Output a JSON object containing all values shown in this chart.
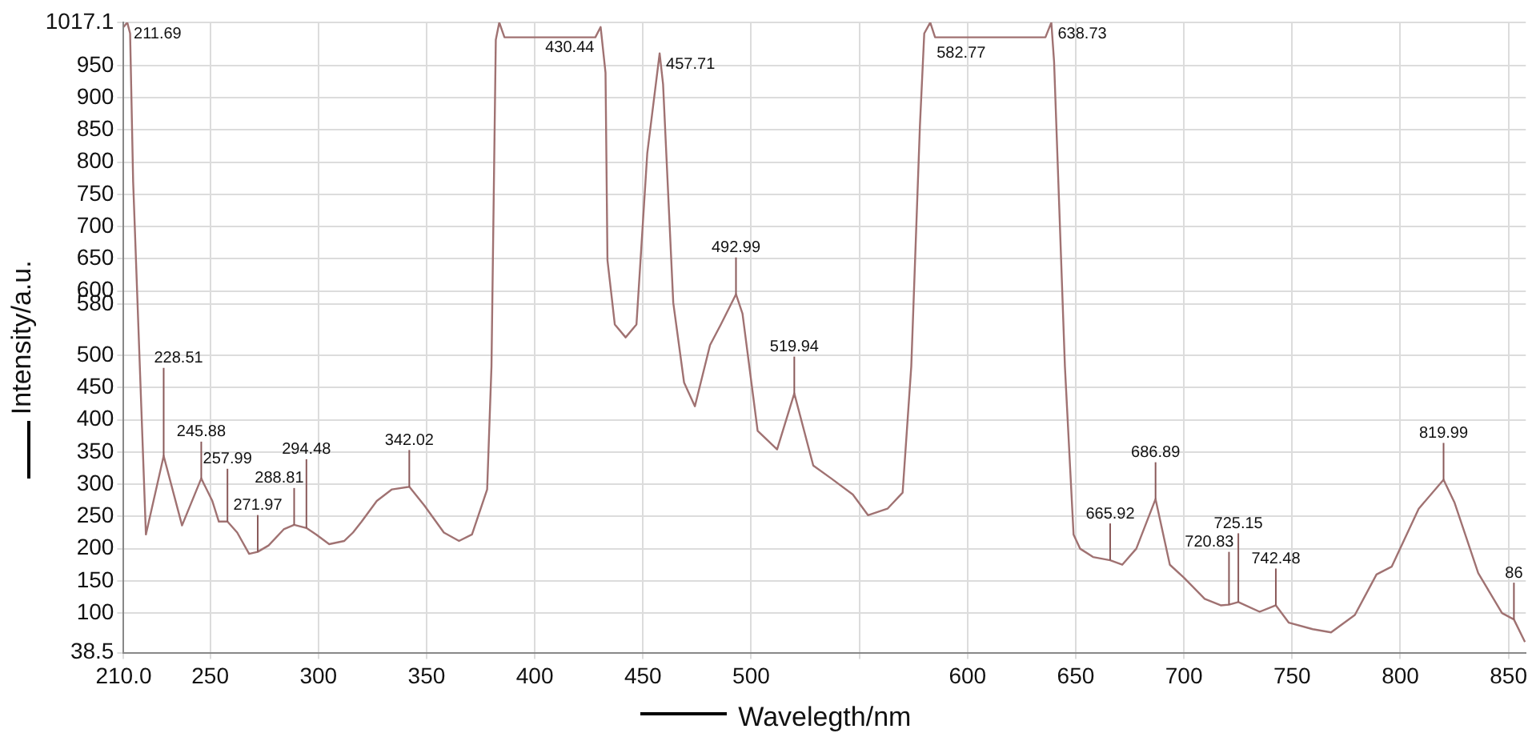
{
  "chart_data": {
    "type": "line",
    "xlabel": "Wavelegth/nm",
    "ylabel": "Intensity/a.u.",
    "x": [
      210,
      211.69,
      213,
      214.4,
      220.3,
      228.51,
      237,
      245.88,
      251,
      254,
      257.99,
      262.5,
      268,
      271.97,
      277,
      284,
      288.81,
      294.48,
      299,
      305,
      312,
      316,
      320,
      327,
      334,
      342.02,
      349,
      358,
      365,
      371,
      378,
      380,
      382,
      383.6,
      386,
      428,
      430.44,
      432.7,
      433.6,
      437,
      442,
      447,
      452,
      457.71,
      459.3,
      464,
      469,
      474,
      481,
      486,
      492.99,
      496,
      503,
      512,
      519.94,
      528.7,
      537,
      547,
      554,
      563,
      570,
      574,
      578,
      580,
      582.77,
      585,
      636,
      638.73,
      640,
      645,
      649,
      652,
      658,
      665.92,
      671.5,
      678,
      686.89,
      693.5,
      700,
      709.6,
      717,
      720.83,
      725.15,
      735,
      742.48,
      748.5,
      759.5,
      768,
      779,
      789,
      796,
      808.5,
      819.99,
      825,
      836,
      847,
      852.5,
      857.6
    ],
    "series": [
      {
        "color": "#a07272",
        "values": [
          1010,
          1017,
          1000,
          770,
          222,
          344,
          236,
          309,
          274,
          242,
          242,
          225,
          192,
          195,
          205,
          230,
          237,
          232,
          222,
          207,
          212,
          225,
          242,
          274,
          292,
          296,
          267,
          225,
          212,
          222,
          292,
          483,
          990,
          1017,
          994,
          994,
          1010,
          939,
          648,
          548,
          528,
          548,
          814,
          969,
          921,
          582,
          458,
          421,
          516,
          548,
          595,
          565,
          383,
          354,
          441,
          329,
          309,
          284,
          252,
          262,
          287,
          483,
          857,
          1000,
          1017,
          994,
          994,
          1017,
          956,
          483,
          222,
          200,
          187,
          182,
          175,
          200,
          277,
          175,
          155,
          122,
          112,
          113,
          117,
          102,
          112,
          85,
          75,
          70,
          97,
          160,
          172,
          262,
          307,
          272,
          162,
          100,
          90,
          55
        ]
      }
    ],
    "xlim": [
      210,
      858
    ],
    "xticks": [
      {
        "value": 210,
        "label": "210.0"
      },
      250,
      300,
      350,
      400,
      450,
      500,
      {
        "value": 550,
        "label": null
      },
      600,
      650,
      700,
      750,
      800,
      850
    ],
    "ylim": [
      38.5,
      1017.1
    ],
    "yticks": [
      38.5,
      100,
      150,
      200,
      250,
      300,
      350,
      400,
      450,
      500,
      580,
      600,
      650,
      700,
      750,
      800,
      850,
      900,
      950,
      1017.1
    ],
    "grid": true,
    "marker": "none",
    "line_style": "solid",
    "annotations": [
      {
        "text": "211.69",
        "x": 211.69,
        "y": 1017
      },
      {
        "text": "228.51",
        "x": 228.51,
        "y": 344
      },
      {
        "text": "245.88",
        "x": 245.88,
        "y": 309
      },
      {
        "text": "257.99",
        "x": 257.99,
        "y": 242
      },
      {
        "text": "271.97",
        "x": 271.97,
        "y": 195
      },
      {
        "text": "288.81",
        "x": 288.81,
        "y": 237
      },
      {
        "text": "294.48",
        "x": 294.48,
        "y": 232
      },
      {
        "text": "342.02",
        "x": 342.02,
        "y": 296
      },
      {
        "text": "430.44",
        "x": 430.44,
        "y": 1010
      },
      {
        "text": "457.71",
        "x": 457.71,
        "y": 969
      },
      {
        "text": "492.99",
        "x": 492.99,
        "y": 595
      },
      {
        "text": "519.94",
        "x": 519.94,
        "y": 441
      },
      {
        "text": "582.77",
        "x": 582.77,
        "y": 1017
      },
      {
        "text": "638.73",
        "x": 638.73,
        "y": 1017
      },
      {
        "text": "665.92",
        "x": 665.92,
        "y": 182
      },
      {
        "text": "686.89",
        "x": 686.89,
        "y": 277
      },
      {
        "text": "720.83",
        "x": 720.83,
        "y": 113
      },
      {
        "text": "725.15",
        "x": 725.15,
        "y": 117
      },
      {
        "text": "742.48",
        "x": 742.48,
        "y": 112
      },
      {
        "text": "819.99",
        "x": 819.99,
        "y": 307
      },
      {
        "text": "86",
        "x": 852.5,
        "y": 90
      }
    ]
  }
}
